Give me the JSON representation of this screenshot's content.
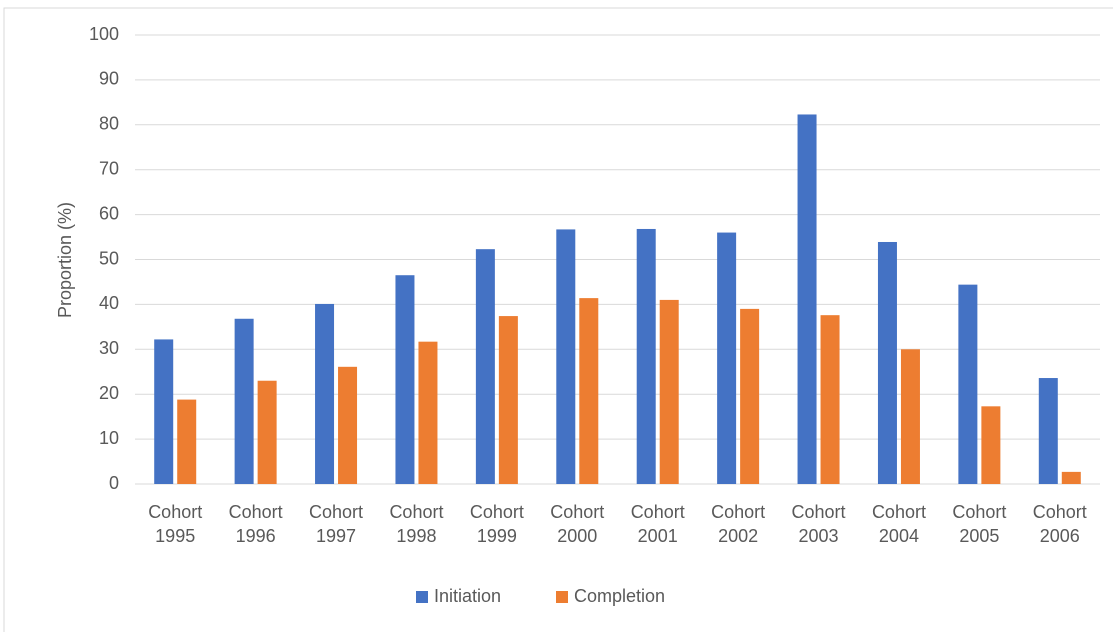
{
  "chart_data": {
    "type": "bar",
    "y_label": "Proportion (%)",
    "categories": [
      "Cohort 1995",
      "Cohort 1996",
      "Cohort 1997",
      "Cohort 1998",
      "Cohort 1999",
      "Cohort 2000",
      "Cohort 2001",
      "Cohort 2002",
      "Cohort 2003",
      "Cohort 2004",
      "Cohort 2005",
      "Cohort 2006"
    ],
    "series": [
      {
        "name": "Initiation",
        "color": "#4472c4",
        "values": [
          32.2,
          36.8,
          40.1,
          46.5,
          52.3,
          56.7,
          56.8,
          56.0,
          82.3,
          53.9,
          44.4,
          23.6
        ]
      },
      {
        "name": "Completion",
        "color": "#ed7d31",
        "values": [
          18.8,
          23.0,
          26.1,
          31.7,
          37.4,
          41.4,
          41.0,
          39.0,
          37.6,
          30.0,
          17.3,
          2.7
        ]
      }
    ],
    "ylim": [
      0,
      100
    ],
    "yticks": [
      0,
      10,
      20,
      30,
      40,
      50,
      60,
      70,
      80,
      90,
      100
    ],
    "grid": true,
    "legend": "bottom"
  }
}
